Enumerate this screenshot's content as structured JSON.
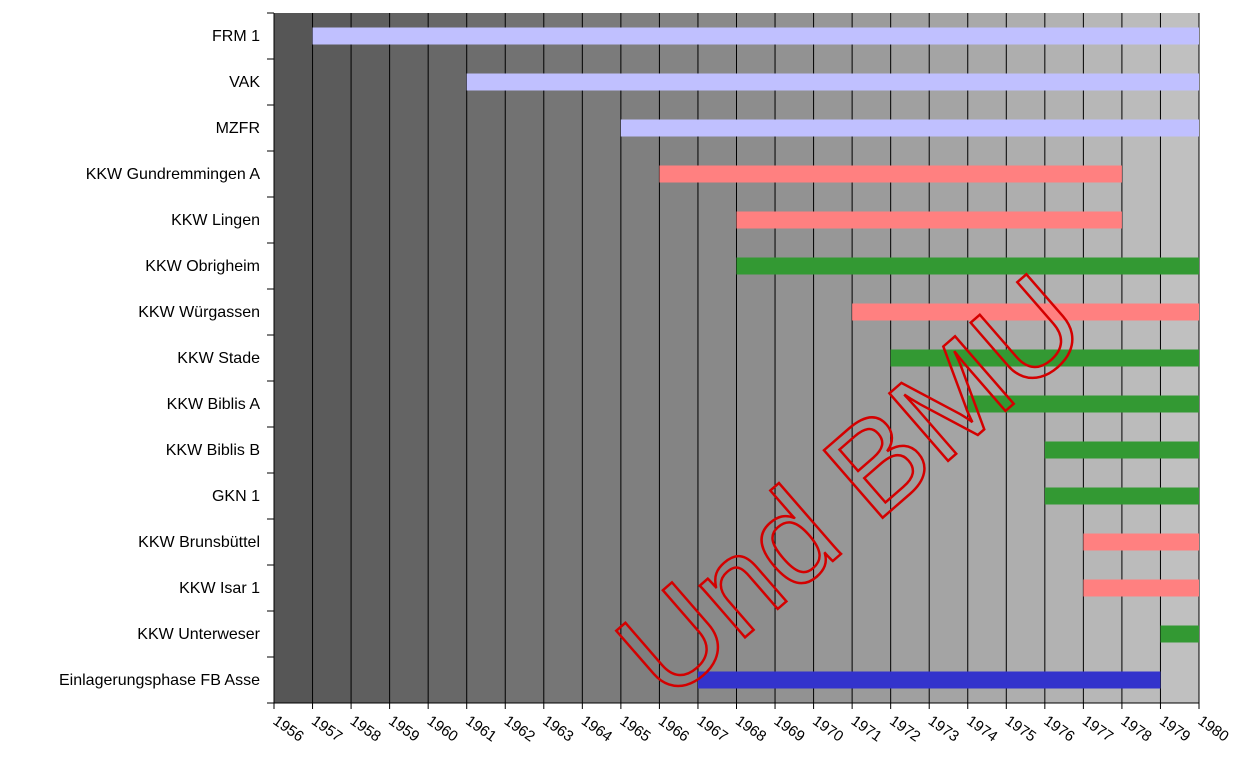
{
  "chart_data": {
    "type": "bar",
    "orientation": "horizontal",
    "title": "",
    "xlabel": "",
    "ylabel": "",
    "xlim": [
      1956,
      1980
    ],
    "x_ticks": [
      "1956",
      "1957",
      "1958",
      "1959",
      "1960",
      "1961",
      "1962",
      "1963",
      "1964",
      "1965",
      "1966",
      "1967",
      "1968",
      "1969",
      "1970",
      "1971",
      "1972",
      "1973",
      "1974",
      "1975",
      "1976",
      "1977",
      "1978",
      "1979",
      "1980"
    ],
    "grid": "vertical",
    "background": "gradient dark-to-light",
    "colors": {
      "lavender": "#c0c0ff",
      "salmon": "#ff8080",
      "green": "#339933",
      "blue": "#3333cc"
    },
    "categories": [
      {
        "label": "FRM 1",
        "start": 1957,
        "end": 1980,
        "color": "lavender"
      },
      {
        "label": "VAK",
        "start": 1961,
        "end": 1980,
        "color": "lavender"
      },
      {
        "label": "MZFR",
        "start": 1965,
        "end": 1980,
        "color": "lavender"
      },
      {
        "label": "KKW Gundremmingen A",
        "start": 1966,
        "end": 1978,
        "color": "salmon"
      },
      {
        "label": "KKW Lingen",
        "start": 1968,
        "end": 1978,
        "color": "salmon"
      },
      {
        "label": "KKW Obrigheim",
        "start": 1968,
        "end": 1980,
        "color": "green"
      },
      {
        "label": "KKW Würgassen",
        "start": 1971,
        "end": 1980,
        "color": "salmon"
      },
      {
        "label": "KKW Stade",
        "start": 1972,
        "end": 1980,
        "color": "green"
      },
      {
        "label": "KKW Biblis A",
        "start": 1974,
        "end": 1980,
        "color": "green"
      },
      {
        "label": "KKW Biblis B",
        "start": 1976,
        "end": 1980,
        "color": "green"
      },
      {
        "label": "GKN 1",
        "start": 1976,
        "end": 1980,
        "color": "green"
      },
      {
        "label": "KKW Brunsbüttel",
        "start": 1977,
        "end": 1980,
        "color": "salmon"
      },
      {
        "label": "KKW Isar 1",
        "start": 1977,
        "end": 1980,
        "color": "salmon"
      },
      {
        "label": "KKW Unterweser",
        "start": 1979,
        "end": 1980,
        "color": "green"
      },
      {
        "label": "Einlagerungsphase FB Asse",
        "start": 1967,
        "end": 1979,
        "color": "blue"
      }
    ],
    "watermark": "Und BMU"
  }
}
